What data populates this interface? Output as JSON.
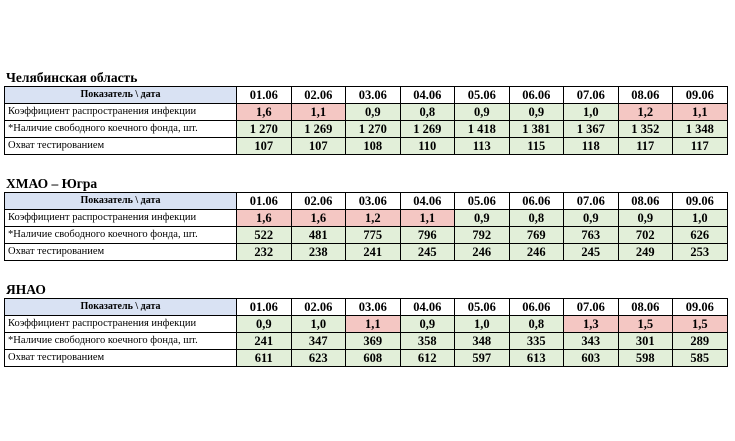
{
  "header_label": "Показатель \\ дата",
  "dates": [
    "01.06",
    "02.06",
    "03.06",
    "04.06",
    "05.06",
    "06.06",
    "07.06",
    "08.06",
    "09.06"
  ],
  "row_labels": [
    "Коэффициент распространения инфекции",
    "*Наличие свободного коечного фонда, шт.",
    "Охват тестированием"
  ],
  "colors": {
    "header_fill": "#d9e2f3",
    "green": "#e2efd9",
    "pink": "#f4c7c3"
  },
  "regions": [
    {
      "title": "Челябинская область",
      "rows": [
        [
          "1,6",
          "1,1",
          "0,9",
          "0,8",
          "0,9",
          "0,9",
          "1,0",
          "1,2",
          "1,1"
        ],
        [
          "1 270",
          "1 269",
          "1 270",
          "1 269",
          "1 418",
          "1 381",
          "1 367",
          "1 352",
          "1 348"
        ],
        [
          "107",
          "107",
          "108",
          "110",
          "113",
          "115",
          "118",
          "117",
          "117"
        ]
      ],
      "fills": [
        [
          "pink",
          "pink",
          "green",
          "green",
          "green",
          "green",
          "green",
          "pink",
          "pink"
        ],
        [
          "green",
          "green",
          "green",
          "green",
          "green",
          "green",
          "green",
          "green",
          "green"
        ],
        [
          "green",
          "green",
          "green",
          "green",
          "green",
          "green",
          "green",
          "green",
          "green"
        ]
      ]
    },
    {
      "title": "ХМАО – Югра",
      "rows": [
        [
          "1,6",
          "1,6",
          "1,2",
          "1,1",
          "0,9",
          "0,8",
          "0,9",
          "0,9",
          "1,0"
        ],
        [
          "522",
          "481",
          "775",
          "796",
          "792",
          "769",
          "763",
          "702",
          "626"
        ],
        [
          "232",
          "238",
          "241",
          "245",
          "246",
          "246",
          "245",
          "249",
          "253"
        ]
      ],
      "fills": [
        [
          "pink",
          "pink",
          "pink",
          "pink",
          "green",
          "green",
          "green",
          "green",
          "green"
        ],
        [
          "green",
          "green",
          "green",
          "green",
          "green",
          "green",
          "green",
          "green",
          "green"
        ],
        [
          "green",
          "green",
          "green",
          "green",
          "green",
          "green",
          "green",
          "green",
          "green"
        ]
      ]
    },
    {
      "title": "ЯНАО",
      "rows": [
        [
          "0,9",
          "1,0",
          "1,1",
          "0,9",
          "1,0",
          "0,8",
          "1,3",
          "1,5",
          "1,5"
        ],
        [
          "241",
          "347",
          "369",
          "358",
          "348",
          "335",
          "343",
          "301",
          "289"
        ],
        [
          "611",
          "623",
          "608",
          "612",
          "597",
          "613",
          "603",
          "598",
          "585"
        ]
      ],
      "fills": [
        [
          "green",
          "green",
          "pink",
          "green",
          "green",
          "green",
          "pink",
          "pink",
          "pink"
        ],
        [
          "green",
          "green",
          "green",
          "green",
          "green",
          "green",
          "green",
          "green",
          "green"
        ],
        [
          "green",
          "green",
          "green",
          "green",
          "green",
          "green",
          "green",
          "green",
          "green"
        ]
      ]
    }
  ]
}
